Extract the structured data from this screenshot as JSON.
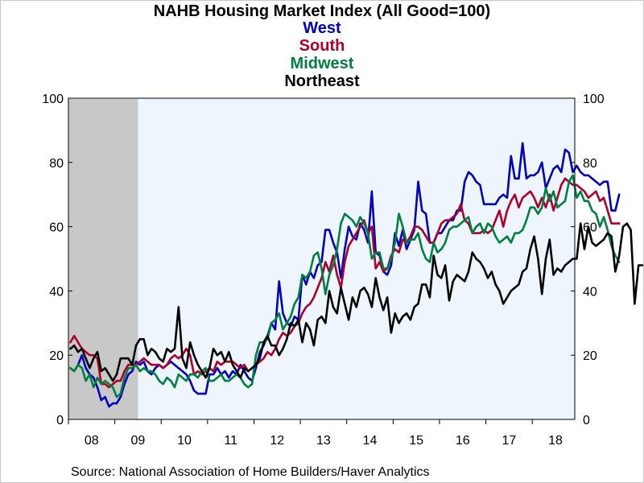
{
  "chart_data": {
    "type": "line",
    "title": "NAHB Housing Market Index (All Good=100)",
    "xlabel": "",
    "ylabel": "",
    "ylim": [
      0,
      100
    ],
    "y_ticks": [
      0,
      20,
      40,
      60,
      80,
      100
    ],
    "x_tick_labels": [
      "08",
      "09",
      "10",
      "11",
      "12",
      "13",
      "14",
      "15",
      "16",
      "17",
      "18"
    ],
    "x_range": [
      "2008-01",
      "2018-11"
    ],
    "recession_shade": {
      "start": "2008-01",
      "end": "2009-06",
      "color": "#c8c8c8"
    },
    "plot_background": "#eef5fd",
    "grid": false,
    "legend": "top-center",
    "series": [
      {
        "name": "West",
        "color": "#0000c0",
        "values": [
          16,
          15,
          17,
          20,
          16,
          14,
          13,
          10,
          6,
          7,
          4,
          5,
          5,
          7,
          11,
          14,
          15,
          18,
          17,
          18,
          15,
          14,
          16,
          17,
          16,
          17,
          18,
          17,
          16,
          15,
          14,
          12,
          9,
          8,
          8,
          8,
          14,
          14,
          16,
          14,
          15,
          13,
          15,
          14,
          17,
          15,
          13,
          12,
          16,
          21,
          23,
          26,
          30,
          28,
          43,
          33,
          30,
          29,
          32,
          31,
          45,
          42,
          46,
          44,
          48,
          49,
          59,
          59,
          55,
          52,
          44,
          53,
          60,
          57,
          56,
          61,
          59,
          55,
          71,
          52,
          51,
          46,
          45,
          48,
          58,
          54,
          59,
          53,
          56,
          59,
          74,
          65,
          64,
          55,
          55,
          58,
          58,
          60,
          62,
          62,
          65,
          65,
          74,
          77,
          76,
          74,
          73,
          67,
          67,
          67,
          67,
          69,
          70,
          69,
          82,
          75,
          75,
          86,
          75,
          76,
          76,
          77,
          80,
          72,
          75,
          78,
          79,
          77,
          84,
          83,
          77,
          79,
          77,
          76,
          76,
          75,
          74,
          73,
          74,
          74,
          65,
          65,
          70
        ]
      },
      {
        "name": "South",
        "color": "#b0002a",
        "values": [
          24,
          26,
          24,
          22,
          21,
          20,
          20,
          19,
          11,
          11,
          10,
          11,
          12,
          12,
          15,
          17,
          17,
          17,
          18,
          19,
          18,
          17,
          17,
          17,
          16,
          17,
          19,
          20,
          19,
          20,
          22,
          20,
          14,
          15,
          14,
          15,
          16,
          15,
          18,
          17,
          18,
          18,
          18,
          17,
          16,
          17,
          15,
          16,
          17,
          18,
          19,
          21,
          20,
          22,
          25,
          27,
          26,
          27,
          29,
          30,
          33,
          35,
          36,
          38,
          41,
          44,
          49,
          46,
          51,
          45,
          41,
          49,
          54,
          56,
          58,
          60,
          62,
          58,
          60,
          47,
          49,
          46,
          47,
          51,
          53,
          52,
          56,
          55,
          57,
          60,
          60,
          59,
          57,
          55,
          55,
          58,
          61,
          62,
          62,
          63,
          64,
          67,
          62,
          61,
          58,
          58,
          58,
          59,
          58,
          59,
          62,
          65,
          60,
          65,
          68,
          70,
          66,
          69,
          70,
          71,
          69,
          66,
          69,
          66,
          70,
          65,
          69,
          73,
          75,
          74,
          73,
          73,
          72,
          71,
          69,
          70,
          71,
          68,
          69,
          65,
          61,
          61,
          61
        ]
      },
      {
        "name": "Midwest",
        "color": "#008040",
        "values": [
          16,
          15,
          17,
          16,
          12,
          14,
          10,
          13,
          11,
          12,
          11,
          10,
          7,
          8,
          13,
          16,
          16,
          17,
          15,
          16,
          15,
          15,
          14,
          12,
          11,
          13,
          12,
          10,
          14,
          13,
          12,
          14,
          14,
          13,
          15,
          16,
          12,
          12,
          13,
          14,
          12,
          12,
          13,
          14,
          13,
          11,
          10,
          11,
          20,
          24,
          24,
          25,
          30,
          31,
          33,
          28,
          30,
          32,
          36,
          38,
          45,
          44,
          46,
          51,
          52,
          47,
          39,
          45,
          48,
          53,
          61,
          64,
          63,
          62,
          60,
          63,
          61,
          58,
          50,
          52,
          52,
          47,
          47,
          50,
          55,
          64,
          60,
          55,
          56,
          56,
          58,
          53,
          50,
          49,
          55,
          52,
          53,
          55,
          59,
          60,
          60,
          61,
          62,
          63,
          58,
          60,
          61,
          58,
          61,
          60,
          57,
          55,
          56,
          57,
          55,
          58,
          58,
          59,
          62,
          66,
          66,
          64,
          66,
          72,
          68,
          71,
          66,
          67,
          68,
          74,
          76,
          69,
          71,
          68,
          68,
          65,
          64,
          60,
          63,
          59,
          54,
          51,
          49
        ]
      },
      {
        "name": "Northeast",
        "color": "#000000",
        "values": [
          22,
          23,
          21,
          22,
          19,
          16,
          19,
          21,
          15,
          16,
          14,
          12,
          14,
          19,
          19,
          19,
          17,
          23,
          25,
          25,
          20,
          22,
          21,
          19,
          18,
          22,
          21,
          22,
          35,
          19,
          16,
          24,
          20,
          17,
          15,
          13,
          16,
          22,
          20,
          21,
          18,
          21,
          17,
          15,
          13,
          16,
          15,
          16,
          17,
          19,
          24,
          26,
          23,
          23,
          20,
          22,
          25,
          30,
          29,
          31,
          24,
          30,
          28,
          23,
          31,
          32,
          30,
          40,
          35,
          33,
          41,
          36,
          31,
          38,
          35,
          40,
          41,
          39,
          35,
          44,
          38,
          34,
          38,
          27,
          33,
          30,
          32,
          33,
          31,
          35,
          36,
          42,
          42,
          38,
          51,
          45,
          44,
          48,
          37,
          43,
          45,
          44,
          43,
          46,
          52,
          50,
          49,
          47,
          44,
          46,
          42,
          40,
          36,
          38,
          40,
          41,
          42,
          46,
          47,
          53,
          57,
          50,
          39,
          50,
          56,
          45,
          47,
          46,
          48,
          49,
          50,
          50,
          61,
          53,
          60,
          55,
          54,
          55,
          56,
          58,
          57,
          46,
          51,
          60,
          61,
          59,
          36,
          48,
          48
        ]
      }
    ]
  },
  "source": "Source:  National Association of Home Builders/Haver Analytics"
}
